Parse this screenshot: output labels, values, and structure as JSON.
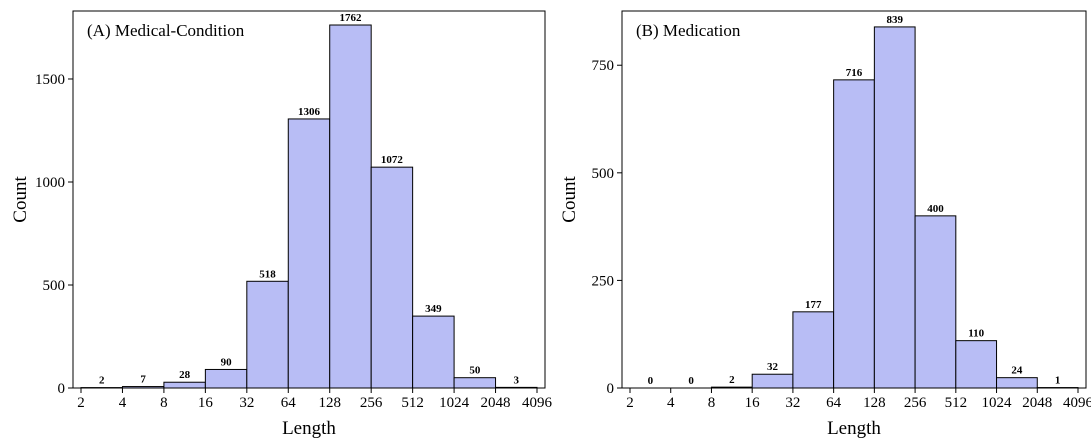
{
  "colors": {
    "bar_fill": "#b8bdf5",
    "bar_stroke": "#000000",
    "frame": "#000000"
  },
  "chart_data": [
    {
      "type": "bar",
      "title": "(A) Medical-Condition",
      "xlabel": "Length",
      "ylabel": "Count",
      "x_scale": "log2",
      "x_ticks": [
        "2",
        "4",
        "8",
        "16",
        "32",
        "64",
        "128",
        "256",
        "512",
        "1024",
        "2048",
        "4096"
      ],
      "bin_edges": [
        2,
        4,
        8,
        16,
        32,
        64,
        128,
        256,
        512,
        1024,
        2048,
        4096
      ],
      "values": [
        2,
        7,
        28,
        90,
        518,
        1306,
        1762,
        1072,
        349,
        50,
        3
      ],
      "y_ticks": [
        0,
        500,
        1000,
        1500
      ],
      "ylim": [
        0,
        1830
      ],
      "grid": false
    },
    {
      "type": "bar",
      "title": "(B) Medication",
      "xlabel": "Length",
      "ylabel": "Count",
      "x_scale": "log2",
      "x_ticks": [
        "2",
        "4",
        "8",
        "16",
        "32",
        "64",
        "128",
        "256",
        "512",
        "1024",
        "2048",
        "4096"
      ],
      "bin_edges": [
        2,
        4,
        8,
        16,
        32,
        64,
        128,
        256,
        512,
        1024,
        2048,
        4096
      ],
      "values": [
        0,
        0,
        2,
        32,
        177,
        716,
        839,
        400,
        110,
        24,
        1
      ],
      "y_ticks": [
        0,
        250,
        500,
        750
      ],
      "ylim": [
        0,
        876
      ],
      "grid": false
    }
  ]
}
